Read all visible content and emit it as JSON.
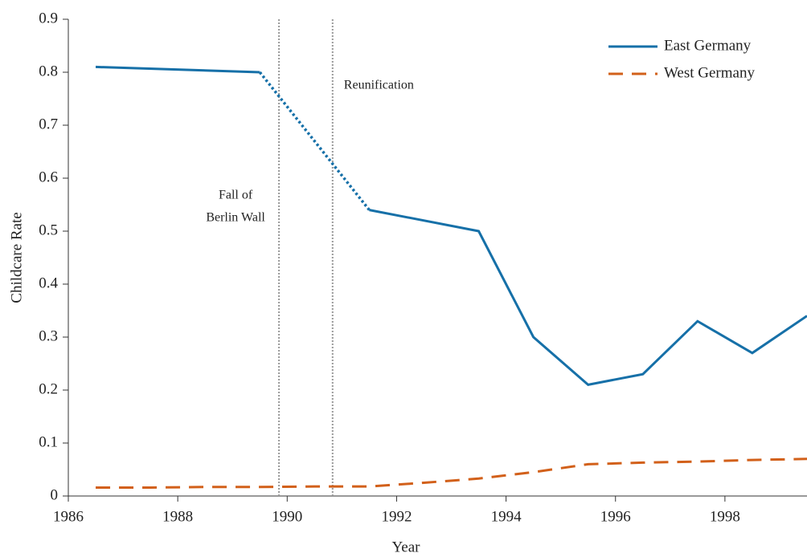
{
  "chart_data": {
    "type": "line",
    "x_label": "Year",
    "y_label": "Childcare Rate",
    "xlim": [
      1986,
      1999.5
    ],
    "xticks": [
      1986,
      1988,
      1990,
      1992,
      1994,
      1996,
      1998
    ],
    "ylim": [
      0,
      0.9
    ],
    "yticks": [
      0,
      0.1,
      0.2,
      0.3,
      0.4,
      0.5,
      0.6,
      0.7,
      0.8,
      0.9
    ],
    "legend": "upper right",
    "series": [
      {
        "name": "East Germany",
        "color": "#1670a8",
        "line_style": "solid",
        "dotted_segments": [
          1
        ],
        "x": [
          1986.5,
          1989.5,
          1991.5,
          1993.5,
          1994.5,
          1995.5,
          1996.5,
          1997.5,
          1998.5,
          1999.5
        ],
        "values": [
          0.81,
          0.8,
          0.54,
          0.5,
          0.3,
          0.21,
          0.23,
          0.33,
          0.27,
          0.34
        ]
      },
      {
        "name": "West Germany",
        "color": "#d2601a",
        "line_style": "dashed",
        "x": [
          1986.5,
          1987.5,
          1988.5,
          1989.5,
          1990.5,
          1991.5,
          1992.5,
          1993.5,
          1994.5,
          1995.5,
          1996.5,
          1997.5,
          1998.5,
          1999.5
        ],
        "values": [
          0.016,
          0.016,
          0.017,
          0.017,
          0.018,
          0.018,
          0.025,
          0.033,
          0.045,
          0.06,
          0.063,
          0.065,
          0.068,
          0.07
        ]
      }
    ],
    "vlines": [
      {
        "x": 1989.85,
        "label": [
          "Fall of",
          "Berlin Wall"
        ]
      },
      {
        "x": 1990.83,
        "label": [
          "Reunification"
        ]
      }
    ]
  }
}
